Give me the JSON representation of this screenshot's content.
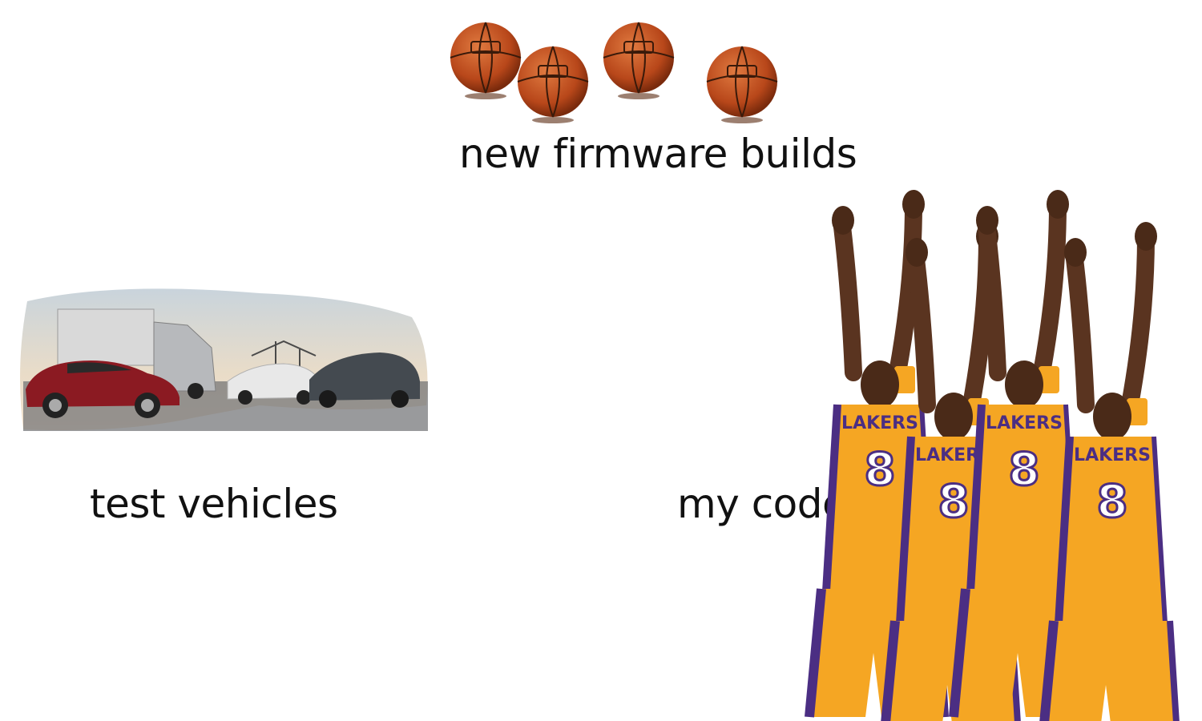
{
  "meme": {
    "top_label": "new firmware builds",
    "left_label": "test vehicles",
    "right_label": "my code"
  },
  "images": {
    "basketballs": {
      "icon": "basketball-icon",
      "count": 4,
      "color": "#c2541f"
    },
    "vehicles": {
      "icon": "electric-vehicle-fleet-photo",
      "colors": [
        "#8b1a22",
        "#e8e8e8",
        "#444a50"
      ]
    },
    "players": {
      "icon": "basketball-player-shooting-photo",
      "count": 4,
      "jersey_number": "8",
      "jersey_color": "#f5a623",
      "trim_color": "#4b2e83"
    }
  }
}
